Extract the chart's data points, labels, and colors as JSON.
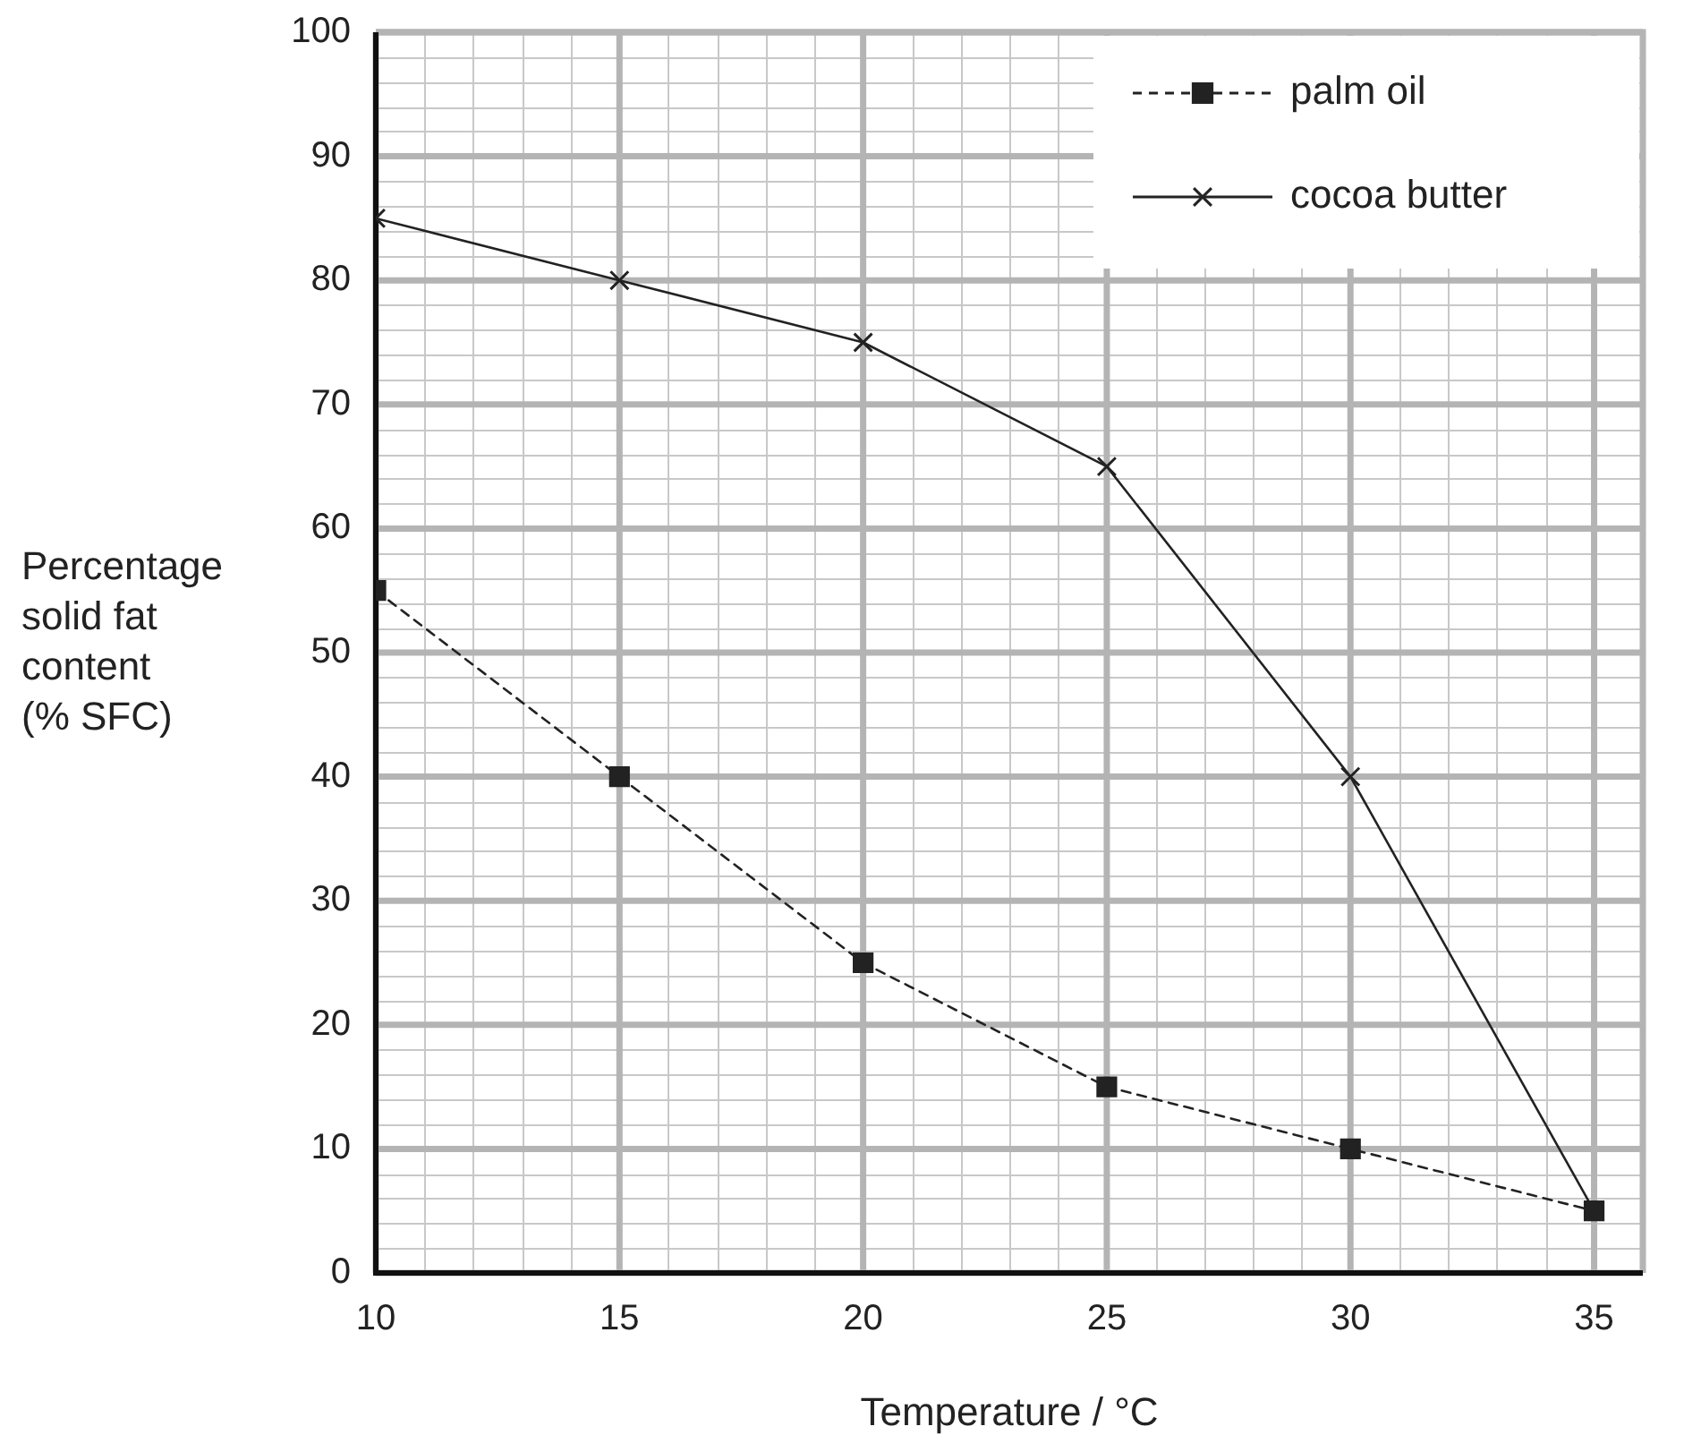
{
  "chart_data": {
    "type": "line",
    "xlabel": "Temperature / °C",
    "ylabel": "Percentage\nsolid fat\ncontent\n(% SFC)",
    "x": [
      10,
      15,
      20,
      25,
      30,
      35
    ],
    "series": [
      {
        "name": "palm oil",
        "color": "#222222",
        "values": [
          55,
          40,
          25,
          15,
          10,
          5
        ],
        "marker": "square",
        "line_style": "dashed"
      },
      {
        "name": "cocoa butter",
        "color": "#222222",
        "values": [
          85,
          80,
          75,
          65,
          40,
          5
        ],
        "marker": "cross",
        "line_style": "solid"
      }
    ],
    "xlim": [
      10,
      36
    ],
    "xticks": [
      10,
      15,
      20,
      25,
      30,
      35
    ],
    "ylim": [
      0,
      100
    ],
    "yticks": [
      0,
      10,
      20,
      30,
      40,
      50,
      60,
      70,
      80,
      90,
      100
    ],
    "grid": true,
    "legend": "top right"
  }
}
